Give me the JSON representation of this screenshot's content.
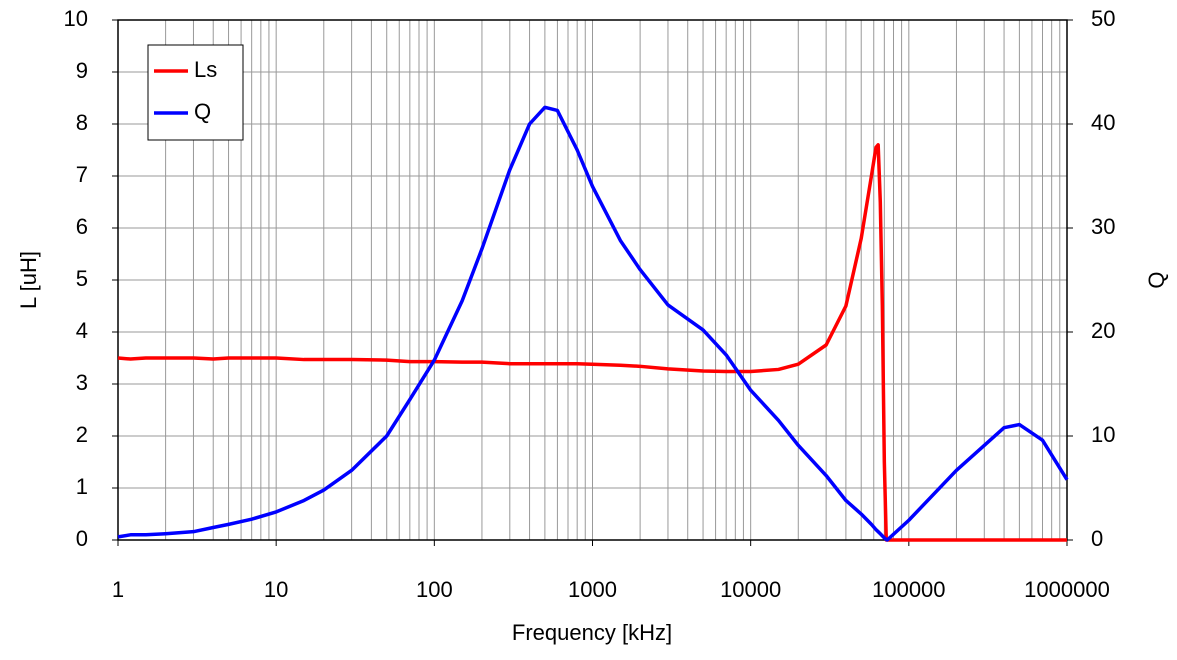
{
  "chart_data": {
    "type": "line",
    "x_label": "Frequency [kHz]",
    "y_label": "L [uH]",
    "y2_label": "Q",
    "x": [
      1,
      1.2,
      1.5,
      2,
      3,
      4,
      5,
      7,
      10,
      15,
      20,
      30,
      50,
      70,
      100,
      150,
      200,
      300,
      400,
      500,
      600,
      800,
      1000,
      1500,
      2000,
      3000,
      5000,
      7000,
      10000,
      15000,
      20000,
      30000,
      40000,
      50000,
      58000,
      62000,
      64000,
      66000,
      68000,
      70000,
      72000,
      73000,
      100000,
      200000,
      400000,
      500000,
      700000,
      1000000
    ],
    "series": [
      {
        "name": "Ls",
        "color": "#ff0000",
        "axis": "y",
        "values": [
          3.5,
          3.48,
          3.5,
          3.5,
          3.5,
          3.48,
          3.5,
          3.5,
          3.5,
          3.47,
          3.47,
          3.47,
          3.46,
          3.43,
          3.43,
          3.42,
          3.42,
          3.39,
          3.39,
          3.39,
          3.39,
          3.39,
          3.38,
          3.36,
          3.34,
          3.29,
          3.25,
          3.24,
          3.24,
          3.28,
          3.38,
          3.75,
          4.5,
          5.8,
          7.0,
          7.55,
          7.6,
          6.5,
          4.5,
          1.5,
          0,
          0,
          0,
          0,
          0,
          0,
          0,
          0
        ]
      },
      {
        "name": "Q",
        "color": "#0000ff",
        "axis": "y2",
        "values": [
          0.3,
          0.5,
          0.5,
          0.6,
          0.8,
          1.2,
          1.5,
          2,
          2.7,
          3.8,
          4.8,
          6.7,
          10,
          13.5,
          17.3,
          23,
          28,
          35.6,
          40,
          41.6,
          41.3,
          37.5,
          34,
          28.8,
          26,
          22.6,
          20.2,
          17.8,
          14.4,
          11.5,
          9.1,
          6.2,
          3.8,
          2.5,
          1.5,
          1,
          0.8,
          0.6,
          0.4,
          0.2,
          0.05,
          0,
          1.9,
          6.7,
          10.8,
          11.1,
          9.6,
          5.8
        ]
      }
    ],
    "x_log": true,
    "xlim": [
      1,
      1000000
    ],
    "xticks": [
      1,
      10,
      100,
      1000,
      10000,
      100000,
      1000000
    ],
    "ylim": [
      0,
      10
    ],
    "yticks": [
      0,
      1,
      2,
      3,
      4,
      5,
      6,
      7,
      8,
      9,
      10
    ],
    "y2lim": [
      0,
      50
    ],
    "y2ticks": [
      0,
      10,
      20,
      30,
      40,
      50
    ],
    "grid": true,
    "minor_grid": true,
    "legend": "upper left"
  }
}
